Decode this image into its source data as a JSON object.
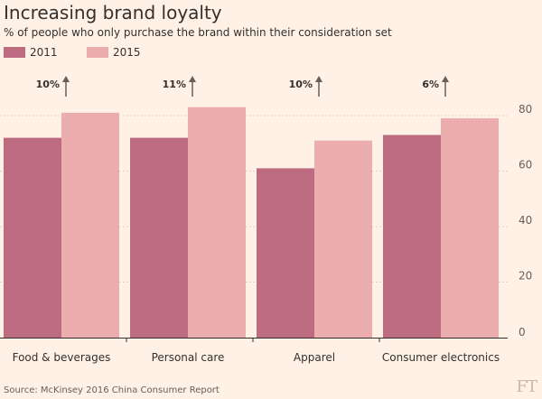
{
  "title": "Increasing brand loyalty",
  "subtitle": "% of people who only purchase the brand within their consideration set",
  "source": "Source: McKinsey 2016 China Consumer Report",
  "logo": "FT",
  "colors": {
    "s2011": "#bd6b81",
    "s2015": "#ecadaf",
    "grid": "#d9ccc1",
    "arrow": "#66605c"
  },
  "chart_data": {
    "type": "bar",
    "title": "Increasing brand loyalty",
    "subtitle": "% of people who only purchase the brand within their consideration set",
    "categories": [
      "Food & beverages",
      "Personal care",
      "Apparel",
      "Consumer electronics"
    ],
    "series": [
      {
        "name": "2011",
        "values": [
          72,
          72,
          61,
          73
        ]
      },
      {
        "name": "2015",
        "values": [
          81,
          83,
          71,
          79
        ]
      }
    ],
    "annotations": [
      "10%",
      "11%",
      "10%",
      "6%"
    ],
    "yticks": [
      0,
      20,
      40,
      60,
      80
    ],
    "ylim": [
      0,
      80
    ],
    "y_axis_side": "right",
    "grid": true,
    "legend": "top-left"
  }
}
